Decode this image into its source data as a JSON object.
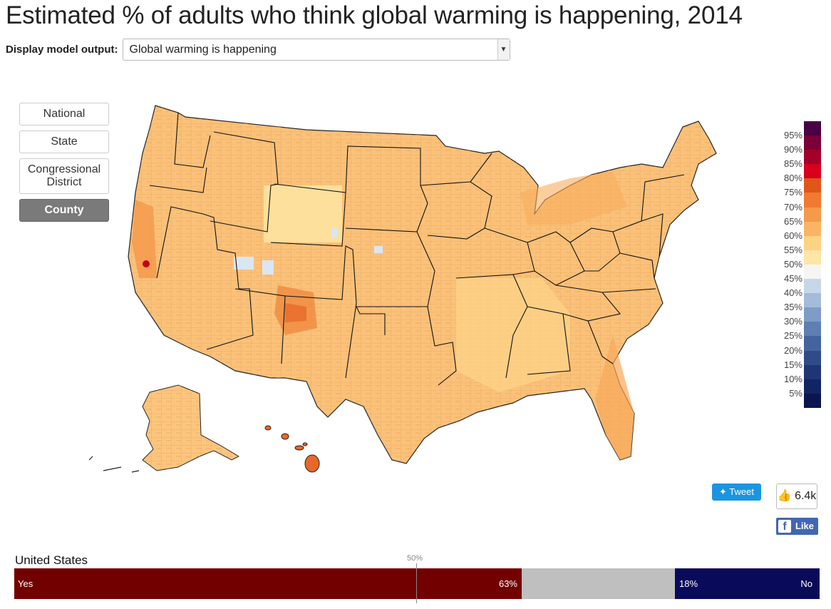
{
  "page": {
    "title": "Estimated % of adults who think global warming is happening, 2014"
  },
  "display": {
    "label": "Display model output:",
    "selected": "Global warming is happening"
  },
  "levels": [
    {
      "label": "National",
      "active": false
    },
    {
      "label": "State",
      "active": false
    },
    {
      "label": "Congressional District",
      "active": false
    },
    {
      "label": "County",
      "active": true
    }
  ],
  "legend": {
    "ticks": [
      "95%",
      "90%",
      "85%",
      "80%",
      "75%",
      "70%",
      "65%",
      "60%",
      "55%",
      "50%",
      "45%",
      "40%",
      "35%",
      "30%",
      "25%",
      "20%",
      "15%",
      "10%",
      "5%"
    ],
    "colors": [
      "#4a0044",
      "#7a0036",
      "#a3002a",
      "#d8001c",
      "#e05518",
      "#f07a30",
      "#f5994a",
      "#f9b565",
      "#fcd283",
      "#fde6a6",
      "#f5f5f5",
      "#c7d7ea",
      "#a4bbda",
      "#7f9cc6",
      "#5f7fb3",
      "#44639f",
      "#2f4b8a",
      "#1e3576",
      "#122463",
      "#0b1550"
    ]
  },
  "social": {
    "tweet": "Tweet",
    "like_count": "6.4k",
    "like": "Like"
  },
  "national": {
    "label": "United States",
    "midpoint": "50%",
    "yes_label": "Yes",
    "yes_value": "63%",
    "no_value": "18%",
    "no_label": "No",
    "yes_percent": 63,
    "no_percent": 18
  }
}
